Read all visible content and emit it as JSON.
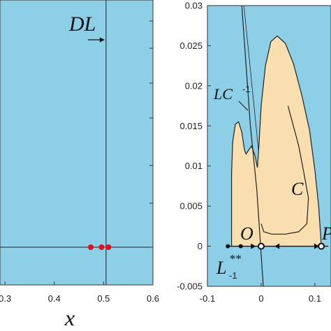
{
  "chart_data": [
    {
      "type": "scatter",
      "title": "",
      "xlabel": "x",
      "ylabel": "",
      "xlim": [
        0.29,
        0.6
      ],
      "x_ticks": [
        "0.3",
        "0.4",
        "0.5",
        "0.6"
      ],
      "background_color": "#8ECFE8",
      "annotations": [
        {
          "text": "DL",
          "x": 0.505,
          "note": "vertical line"
        }
      ],
      "series": [
        {
          "color": "#E0101A",
          "x": [
            0.474,
            0.496,
            0.51
          ],
          "y": [
            0,
            0,
            0
          ]
        }
      ]
    },
    {
      "type": "area",
      "title": "",
      "xlabel": "",
      "ylabel": "",
      "xlim": [
        -0.1,
        0.13
      ],
      "ylim": [
        -0.005,
        0.03
      ],
      "x_ticks": [
        "-0.1",
        "0",
        "0.1"
      ],
      "y_ticks": [
        "-0.005",
        "0",
        "0.005",
        "0.01",
        "0.015",
        "0.02",
        "0.025",
        "0.03"
      ],
      "background_color": "#8ECFE8",
      "fill_color": "#F9DEB0",
      "labels": {
        "lc": "LC",
        "lc_sub": "-1",
        "c": "C",
        "o": "O",
        "l_main": "L",
        "l_sup": "**",
        "l_sub": "-1",
        "p": "P"
      },
      "region_outline": [
        [
          -0.055,
          0
        ],
        [
          -0.055,
          0.009
        ],
        [
          -0.053,
          0.013
        ],
        [
          -0.048,
          0.0152
        ],
        [
          -0.042,
          0.0155
        ],
        [
          -0.036,
          0.0142
        ],
        [
          -0.031,
          0.012
        ],
        [
          -0.028,
          0.0115
        ],
        [
          -0.025,
          0.0118
        ],
        [
          -0.018,
          0.0125
        ],
        [
          -0.011,
          0.0112
        ],
        [
          -0.007,
          0.0098
        ],
        [
          -0.005,
          0.0115
        ],
        [
          0,
          0.0175
        ],
        [
          0.008,
          0.0225
        ],
        [
          0.018,
          0.0255
        ],
        [
          0.03,
          0.0262
        ],
        [
          0.045,
          0.0253
        ],
        [
          0.06,
          0.0228
        ],
        [
          0.075,
          0.019
        ],
        [
          0.09,
          0.0145
        ],
        [
          0.1,
          0.0095
        ],
        [
          0.107,
          0.005
        ],
        [
          0.11,
          0.002
        ],
        [
          0.112,
          0
        ],
        [
          0.095,
          0
        ],
        [
          0.08,
          0
        ],
        [
          0.05,
          0
        ],
        [
          0.01,
          0
        ],
        [
          0,
          0
        ],
        [
          -0.06,
          0
        ]
      ],
      "inner_curve_C": [
        [
          0.0,
          0.0028
        ],
        [
          0.005,
          0.0018
        ],
        [
          0.02,
          0.0015
        ],
        [
          0.045,
          0.0015
        ],
        [
          0.07,
          0.0018
        ],
        [
          0.085,
          0.0028
        ],
        [
          0.088,
          0.006
        ],
        [
          0.08,
          0.009
        ],
        [
          0.07,
          0.0125
        ],
        [
          0.06,
          0.015
        ],
        [
          0.05,
          0.0175
        ]
      ],
      "series": [
        {
          "x": [
            -0.065,
            0.125
          ],
          "y": [
            0,
            0
          ]
        }
      ],
      "points": [
        {
          "x": -0.062,
          "y": 0,
          "style": "filled"
        },
        {
          "x": -0.038,
          "y": 0,
          "style": "filled"
        },
        {
          "x": 0,
          "y": 0,
          "style": "open"
        },
        {
          "x": 0.112,
          "y": 0,
          "style": "open"
        }
      ]
    }
  ]
}
